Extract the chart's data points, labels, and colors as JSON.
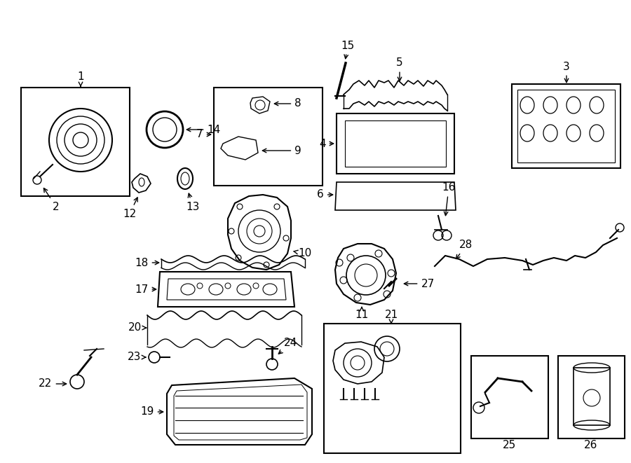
{
  "bg_color": "#ffffff",
  "line_color": "#000000",
  "text_color": "#000000",
  "fig_width": 9.0,
  "fig_height": 6.61,
  "dpi": 100
}
